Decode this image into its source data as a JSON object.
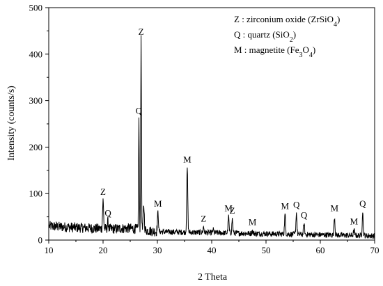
{
  "chart_data": {
    "type": "line",
    "xlabel": "2 Theta",
    "ylabel": "Intensity (counts/s)",
    "xlim": [
      10,
      70
    ],
    "ylim": [
      0,
      500
    ],
    "xticks": [
      "10",
      "20",
      "30",
      "40",
      "50",
      "60",
      "70"
    ],
    "yticks": [
      "0",
      "100",
      "200",
      "300",
      "400",
      "500"
    ],
    "grid": false,
    "legend_position": "top-right",
    "legend": [
      {
        "prefix": "Z : zirconium oxide (ZrSiO",
        "sub": "4",
        "suffix": ")"
      },
      {
        "prefix": "Q : quartz (SiO",
        "sub": "2",
        "suffix": ")"
      },
      {
        "prefix": "M : magnetite (Fe",
        "sub": "3",
        "mid": "O",
        "sub2": "4",
        "suffix": ")"
      }
    ],
    "peaks": [
      {
        "x": 20.0,
        "y": 85,
        "label": "Z"
      },
      {
        "x": 20.9,
        "y": 40,
        "label": "Q"
      },
      {
        "x": 26.6,
        "y": 260,
        "label": "Q"
      },
      {
        "x": 27.0,
        "y": 430,
        "label": "Z"
      },
      {
        "x": 27.5,
        "y": 75,
        "label": ""
      },
      {
        "x": 30.1,
        "y": 60,
        "label": "M"
      },
      {
        "x": 35.5,
        "y": 155,
        "label": "M"
      },
      {
        "x": 38.5,
        "y": 28,
        "label": "Z"
      },
      {
        "x": 40.3,
        "y": 22,
        "label": ""
      },
      {
        "x": 43.1,
        "y": 50,
        "label": "M"
      },
      {
        "x": 43.8,
        "y": 45,
        "label": "Z"
      },
      {
        "x": 47.5,
        "y": 20,
        "label": "M"
      },
      {
        "x": 53.5,
        "y": 55,
        "label": "M"
      },
      {
        "x": 55.6,
        "y": 58,
        "label": "Q"
      },
      {
        "x": 57.0,
        "y": 35,
        "label": "Q"
      },
      {
        "x": 62.6,
        "y": 50,
        "label": "M"
      },
      {
        "x": 66.2,
        "y": 22,
        "label": "M"
      },
      {
        "x": 67.8,
        "y": 60,
        "label": "Q"
      }
    ]
  }
}
